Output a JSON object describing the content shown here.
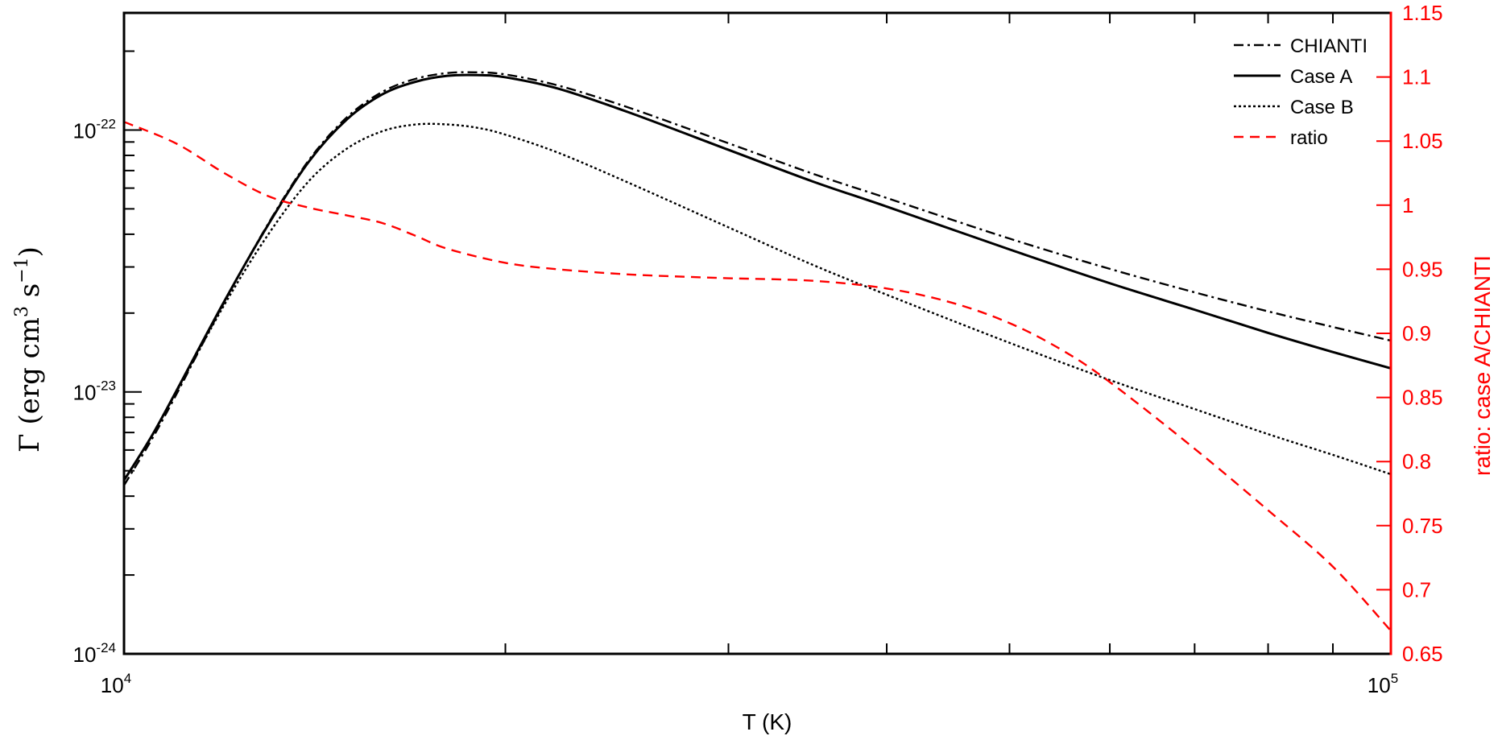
{
  "chart_data": {
    "type": "line",
    "title": "",
    "xlabel": "T (K)",
    "xscale": "log",
    "xlim": [
      10000,
      100000
    ],
    "x_ticks": [
      {
        "base": "10",
        "exp": "4"
      },
      {
        "base": "10",
        "exp": "5"
      }
    ],
    "ylabel_left": {
      "prefix": "Γ (erg cm",
      "exp1": "3",
      "mid": " s",
      "exp2": "−1",
      "suffix": ")"
    },
    "yscale_left": "log",
    "ylim_left": [
      1e-24,
      2.8e-22
    ],
    "y_ticks_left": [
      {
        "base": "10",
        "exp": "-22",
        "value": 1e-22
      },
      {
        "base": "10",
        "exp": "-23",
        "value": 1e-23
      },
      {
        "base": "10",
        "exp": "-24",
        "value": 1e-24
      }
    ],
    "ylabel_right": "ratio: case A/CHIANTI",
    "ylim_right": [
      0.65,
      1.15
    ],
    "y_ticks_right": [
      "0.65",
      "0.7",
      "0.75",
      "0.8",
      "0.85",
      "0.9",
      "0.95",
      "1",
      "1.05",
      "1.1",
      "1.15"
    ],
    "right_axis_color": "#ff0000",
    "legend_position": "top-right",
    "series": [
      {
        "name": "CHIANTI",
        "axis": "left",
        "color": "#000000",
        "dash": "dashdot",
        "x": [
          10000,
          10500,
          11000,
          12000,
          13000,
          14000,
          15000,
          16000,
          17000,
          18000,
          19000,
          20000,
          22000,
          25000,
          30000,
          35000,
          40000,
          50000,
          60000,
          70000,
          80000,
          90000,
          100000
        ],
        "y": [
          4.4e-24,
          6.5e-24,
          9.8e-24,
          2.2e-23,
          4.4e-23,
          7.7e-23,
          1.12e-22,
          1.4e-22,
          1.57e-22,
          1.65e-22,
          1.66e-22,
          1.63e-22,
          1.48e-22,
          1.22e-22,
          8.9e-23,
          6.8e-23,
          5.5e-23,
          3.85e-23,
          2.95e-23,
          2.4e-23,
          2.03e-23,
          1.77e-23,
          1.57e-23
        ]
      },
      {
        "name": "Case A",
        "axis": "left",
        "color": "#000000",
        "dash": "solid",
        "x": [
          10000,
          10500,
          11000,
          12000,
          13000,
          14000,
          15000,
          16000,
          17000,
          18000,
          19000,
          20000,
          22000,
          25000,
          30000,
          35000,
          40000,
          50000,
          60000,
          70000,
          80000,
          90000,
          100000
        ],
        "y": [
          4.6e-24,
          6.7e-24,
          1.01e-23,
          2.22e-23,
          4.36e-23,
          7.6e-23,
          1.1e-22,
          1.37e-22,
          1.53e-22,
          1.61e-22,
          1.62e-22,
          1.59e-22,
          1.44e-22,
          1.17e-22,
          8.4e-23,
          6.35e-23,
          5.1e-23,
          3.5e-23,
          2.6e-23,
          2.06e-23,
          1.68e-23,
          1.42e-23,
          1.23e-23
        ]
      },
      {
        "name": "Case B",
        "axis": "left",
        "color": "#000000",
        "dash": "dotted",
        "x": [
          10000,
          10500,
          11000,
          12000,
          13000,
          14000,
          15000,
          16000,
          17000,
          18000,
          19000,
          20000,
          22000,
          25000,
          30000,
          35000,
          40000,
          50000,
          60000,
          70000,
          80000,
          90000,
          100000
        ],
        "y": [
          4.6e-24,
          6.7e-24,
          1e-23,
          2.15e-23,
          4e-23,
          6.4e-23,
          8.5e-23,
          9.9e-23,
          1.05e-22,
          1.05e-22,
          1.02e-22,
          9.6e-23,
          8.2e-23,
          6.3e-23,
          4.25e-23,
          3.05e-23,
          2.35e-23,
          1.54e-23,
          1.11e-23,
          8.6e-24,
          6.9e-24,
          5.75e-24,
          4.85e-24
        ]
      },
      {
        "name": "ratio",
        "axis": "right",
        "color": "#ff0000",
        "dash": "dashed",
        "x": [
          10000,
          11000,
          12000,
          13000,
          14000,
          15000,
          16000,
          17000,
          18000,
          20000,
          22000,
          25000,
          28000,
          30000,
          35000,
          40000,
          45000,
          50000,
          55000,
          60000,
          70000,
          80000,
          90000,
          100000
        ],
        "y": [
          1.065,
          1.048,
          1.025,
          1.007,
          0.998,
          0.992,
          0.986,
          0.976,
          0.966,
          0.955,
          0.95,
          0.946,
          0.944,
          0.943,
          0.941,
          0.935,
          0.924,
          0.908,
          0.887,
          0.862,
          0.81,
          0.762,
          0.718,
          0.668
        ]
      }
    ]
  }
}
